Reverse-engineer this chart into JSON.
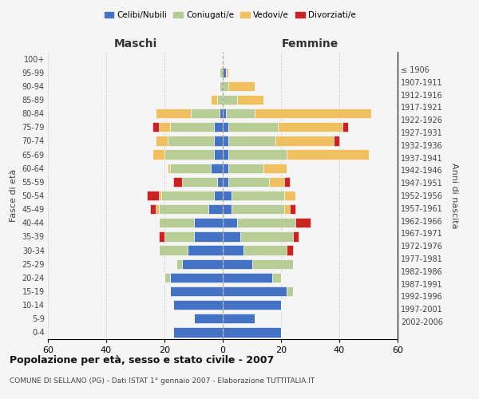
{
  "age_groups": [
    "0-4",
    "5-9",
    "10-14",
    "15-19",
    "20-24",
    "25-29",
    "30-34",
    "35-39",
    "40-44",
    "45-49",
    "50-54",
    "55-59",
    "60-64",
    "65-69",
    "70-74",
    "75-79",
    "80-84",
    "85-89",
    "90-94",
    "95-99",
    "100+"
  ],
  "birth_years": [
    "2002-2006",
    "1997-2001",
    "1992-1996",
    "1987-1991",
    "1982-1986",
    "1977-1981",
    "1972-1976",
    "1967-1971",
    "1962-1966",
    "1957-1961",
    "1952-1956",
    "1947-1951",
    "1942-1946",
    "1937-1941",
    "1932-1936",
    "1927-1931",
    "1922-1926",
    "1917-1921",
    "1912-1916",
    "1907-1911",
    "≤ 1906"
  ],
  "maschi": {
    "celibi": [
      17,
      10,
      17,
      18,
      18,
      14,
      12,
      10,
      10,
      5,
      3,
      2,
      4,
      3,
      3,
      3,
      1,
      0,
      0,
      0,
      0
    ],
    "coniugati": [
      0,
      0,
      0,
      0,
      2,
      2,
      10,
      10,
      12,
      17,
      18,
      12,
      14,
      17,
      16,
      15,
      10,
      2,
      1,
      1,
      0
    ],
    "vedovi": [
      0,
      0,
      0,
      0,
      0,
      0,
      0,
      0,
      0,
      1,
      1,
      0,
      1,
      4,
      4,
      4,
      12,
      2,
      0,
      0,
      0
    ],
    "divorziati": [
      0,
      0,
      0,
      0,
      0,
      0,
      0,
      2,
      0,
      2,
      4,
      3,
      0,
      0,
      0,
      2,
      0,
      0,
      0,
      0,
      0
    ]
  },
  "femmine": {
    "nubili": [
      20,
      11,
      20,
      22,
      17,
      10,
      7,
      6,
      5,
      3,
      3,
      2,
      2,
      2,
      2,
      2,
      1,
      0,
      0,
      1,
      0
    ],
    "coniugate": [
      0,
      0,
      0,
      2,
      3,
      14,
      15,
      18,
      20,
      18,
      18,
      14,
      12,
      20,
      16,
      17,
      10,
      5,
      2,
      0,
      0
    ],
    "vedove": [
      0,
      0,
      0,
      0,
      0,
      0,
      0,
      0,
      0,
      2,
      4,
      5,
      8,
      28,
      20,
      22,
      40,
      9,
      9,
      1,
      0
    ],
    "divorziate": [
      0,
      0,
      0,
      0,
      0,
      0,
      2,
      2,
      5,
      2,
      0,
      2,
      0,
      0,
      2,
      2,
      0,
      0,
      0,
      0,
      0
    ]
  },
  "colors": {
    "celibi": "#4472c4",
    "coniugati": "#b8cc96",
    "vedovi": "#f0c060",
    "divorziati": "#cc2222"
  },
  "xlim": 60,
  "title": "Popolazione per età, sesso e stato civile - 2007",
  "subtitle": "COMUNE DI SELLANO (PG) - Dati ISTAT 1° gennaio 2007 - Elaborazione TUTTITALIA.IT",
  "ylabel_left": "Fasce di età",
  "ylabel_right": "Anni di nascita",
  "xlabel_maschi": "Maschi",
  "xlabel_femmine": "Femmine",
  "legend_labels": [
    "Celibi/Nubili",
    "Coniugati/e",
    "Vedovi/e",
    "Divorziati/e"
  ]
}
